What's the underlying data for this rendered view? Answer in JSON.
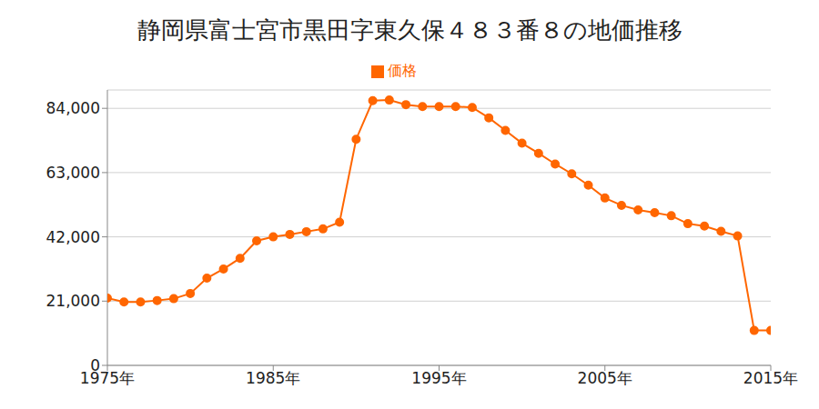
{
  "chart_data": {
    "type": "line",
    "title": "静岡県富士宮市黒田字東久保４８３番８の地価推移",
    "x": [
      1975,
      1976,
      1977,
      1978,
      1979,
      1980,
      1981,
      1982,
      1983,
      1984,
      1985,
      1986,
      1987,
      1988,
      1989,
      1990,
      1991,
      1992,
      1993,
      1994,
      1995,
      1996,
      1997,
      1998,
      1999,
      2000,
      2001,
      2002,
      2003,
      2004,
      2005,
      2006,
      2007,
      2008,
      2009,
      2010,
      2011,
      2012,
      2013,
      2014,
      2015
    ],
    "series": [
      {
        "name": "価格",
        "color": "#ff6600",
        "marker": "circle",
        "values": [
          22000,
          20700,
          20700,
          21200,
          21800,
          23500,
          28500,
          31500,
          35000,
          40700,
          42000,
          42800,
          43700,
          44600,
          46800,
          73900,
          86500,
          86700,
          85200,
          84600,
          84600,
          84600,
          84300,
          80900,
          76800,
          72600,
          69300,
          65800,
          62600,
          58900,
          54700,
          52300,
          50800,
          49900,
          48900,
          46300,
          45500,
          43800,
          42300,
          11400,
          11400
        ]
      }
    ],
    "xlim": [
      1975,
      2015
    ],
    "xticks": [
      {
        "value": 1975,
        "label": "1975年"
      },
      {
        "value": 1985,
        "label": "1985年"
      },
      {
        "value": 1995,
        "label": "1995年"
      },
      {
        "value": 2005,
        "label": "2005年"
      },
      {
        "value": 2015,
        "label": "2015年"
      }
    ],
    "ylim": [
      0,
      90000
    ],
    "yticks": [
      0,
      {
        "value": 21000,
        "label": "21,000"
      },
      {
        "value": 42000,
        "label": "42,000"
      },
      {
        "value": 63000,
        "label": "63,000"
      },
      {
        "value": 84000,
        "label": "84,000"
      }
    ],
    "grid": true,
    "legend": "top"
  }
}
